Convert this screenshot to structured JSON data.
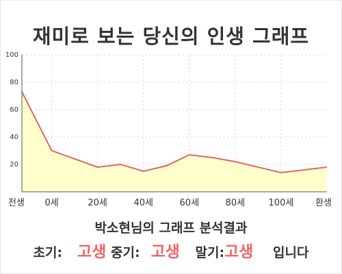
{
  "title": "재미로 보는 당신의 인생 그래프",
  "owner_caption": "박소현님의 그래프 분석결과",
  "summary": {
    "early_label": "초기:",
    "early_value": "고생",
    "mid_label": "중기:",
    "mid_value": "고생",
    "late_label": "말기:",
    "late_value": "고생",
    "suffix": "입니다"
  },
  "colors": {
    "line": "#e06666",
    "fill": "#ffffcc",
    "accent": "#f06565",
    "grid": "#dddddd"
  },
  "chart_data": {
    "type": "area",
    "x": [
      "전생",
      "0세",
      "20세",
      "40세",
      "60세",
      "80세",
      "100세",
      "환생"
    ],
    "y_ticks": [
      20,
      40,
      60,
      80,
      100
    ],
    "ylim": [
      0,
      100
    ],
    "grid": true,
    "series": [
      {
        "points": [
          {
            "x": -13,
            "y": 73
          },
          {
            "x": 0,
            "y": 30
          },
          {
            "x": 20,
            "y": 18
          },
          {
            "x": 30,
            "y": 20
          },
          {
            "x": 40,
            "y": 15
          },
          {
            "x": 50,
            "y": 19
          },
          {
            "x": 60,
            "y": 27
          },
          {
            "x": 70,
            "y": 25
          },
          {
            "x": 80,
            "y": 22
          },
          {
            "x": 100,
            "y": 14
          },
          {
            "x": 120,
            "y": 18
          }
        ]
      }
    ]
  }
}
